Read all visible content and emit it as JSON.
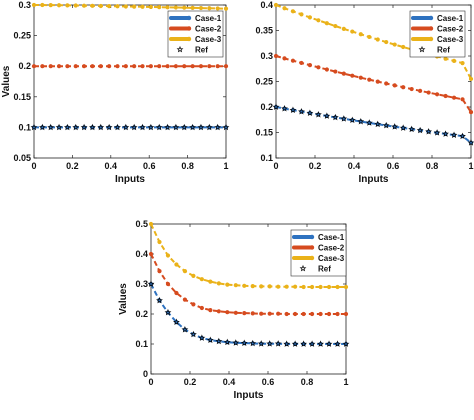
{
  "chart_data": [
    {
      "type": "line",
      "xlabel": "Inputs",
      "ylabel": "Values",
      "xlim": [
        0,
        1
      ],
      "ylim": [
        0.05,
        0.3
      ],
      "xticks": [
        "0",
        "0.2",
        "0.4",
        "0.6",
        "0.8",
        "1"
      ],
      "yticks": [
        "0.05",
        "0.1",
        "0.15",
        "0.2",
        "0.25",
        "0.3"
      ],
      "legend": "top-right",
      "x": [
        0,
        0.0435,
        0.087,
        0.1304,
        0.1739,
        0.2174,
        0.2609,
        0.3043,
        0.3478,
        0.3913,
        0.4348,
        0.4783,
        0.5217,
        0.5652,
        0.6087,
        0.6522,
        0.6957,
        0.7391,
        0.7826,
        0.8261,
        0.8696,
        0.913,
        0.9565,
        1
      ],
      "series": [
        {
          "name": "Case-1",
          "color": "#2e72c0",
          "values": [
            0.1,
            0.1,
            0.1,
            0.1,
            0.1,
            0.1,
            0.1,
            0.1,
            0.1,
            0.1,
            0.1,
            0.1,
            0.1,
            0.1,
            0.1,
            0.1,
            0.1,
            0.1,
            0.1,
            0.1,
            0.1,
            0.1,
            0.1,
            0.1
          ]
        },
        {
          "name": "Case-2",
          "color": "#d64b1f",
          "values": [
            0.2,
            0.2,
            0.2,
            0.2,
            0.2,
            0.2,
            0.2,
            0.2,
            0.2,
            0.2,
            0.2,
            0.2,
            0.2,
            0.2,
            0.2,
            0.2,
            0.2,
            0.2,
            0.2,
            0.2,
            0.2,
            0.2,
            0.2,
            0.2
          ]
        },
        {
          "name": "Case-3",
          "color": "#eab219",
          "values": [
            0.3,
            0.3,
            0.2998,
            0.2996,
            0.2994,
            0.2992,
            0.2989,
            0.2987,
            0.2984,
            0.2982,
            0.2979,
            0.2976,
            0.2974,
            0.2971,
            0.2968,
            0.2965,
            0.2962,
            0.2959,
            0.2956,
            0.2953,
            0.295,
            0.2947,
            0.2944,
            0.294
          ]
        },
        {
          "name": "Ref",
          "color": "#000000",
          "marker": "star",
          "values": [
            0.1,
            0.1,
            0.1,
            0.1,
            0.1,
            0.1,
            0.1,
            0.1,
            0.1,
            0.1,
            0.1,
            0.1,
            0.1,
            0.1,
            0.1,
            0.1,
            0.1,
            0.1,
            0.1,
            0.1,
            0.1,
            0.1,
            0.1,
            0.1
          ]
        }
      ]
    },
    {
      "type": "line",
      "xlabel": "Inputs",
      "ylabel": "",
      "xlim": [
        0,
        1
      ],
      "ylim": [
        0.1,
        0.4
      ],
      "xticks": [
        "0",
        "0.2",
        "0.4",
        "0.6",
        "0.8",
        "1"
      ],
      "yticks": [
        "0.1",
        "0.15",
        "0.2",
        "0.25",
        "0.3",
        "0.35",
        "0.4"
      ],
      "legend": "top-right",
      "x": [
        0,
        0.0435,
        0.087,
        0.1304,
        0.1739,
        0.2174,
        0.2609,
        0.3043,
        0.3478,
        0.3913,
        0.4348,
        0.4783,
        0.5217,
        0.5652,
        0.6087,
        0.6522,
        0.6957,
        0.7391,
        0.7826,
        0.8261,
        0.8696,
        0.913,
        0.9565,
        1
      ],
      "series": [
        {
          "name": "Case-1",
          "color": "#2e72c0",
          "values": [
            0.2,
            0.1969,
            0.1939,
            0.191,
            0.1881,
            0.1852,
            0.1824,
            0.1796,
            0.1769,
            0.1742,
            0.1715,
            0.1689,
            0.1663,
            0.1638,
            0.1613,
            0.1589,
            0.1565,
            0.1541,
            0.1518,
            0.1495,
            0.1472,
            0.145,
            0.1428,
            0.13
          ]
        },
        {
          "name": "Case-2",
          "color": "#d64b1f",
          "values": [
            0.3,
            0.2953,
            0.2908,
            0.2864,
            0.2821,
            0.2778,
            0.2736,
            0.2695,
            0.2654,
            0.2614,
            0.2575,
            0.2536,
            0.2498,
            0.2461,
            0.2424,
            0.2388,
            0.2352,
            0.2317,
            0.2283,
            0.2249,
            0.2216,
            0.2183,
            0.2151,
            0.19
          ]
        },
        {
          "name": "Case-3",
          "color": "#eab219",
          "values": [
            0.4,
            0.3937,
            0.3876,
            0.3816,
            0.3757,
            0.37,
            0.3643,
            0.3587,
            0.3532,
            0.3479,
            0.3426,
            0.3374,
            0.3323,
            0.3273,
            0.3224,
            0.3176,
            0.3128,
            0.3082,
            0.3036,
            0.2991,
            0.2947,
            0.2904,
            0.2861,
            0.255
          ]
        },
        {
          "name": "Ref",
          "color": "#000000",
          "marker": "star",
          "values": [
            0.2,
            0.1969,
            0.1939,
            0.191,
            0.1881,
            0.1852,
            0.1824,
            0.1796,
            0.1769,
            0.1742,
            0.1715,
            0.1689,
            0.1663,
            0.1638,
            0.1613,
            0.1589,
            0.1565,
            0.1541,
            0.1518,
            0.1495,
            0.1472,
            0.145,
            0.1428,
            0.13
          ]
        }
      ]
    },
    {
      "type": "line",
      "xlabel": "Inputs",
      "ylabel": "Values",
      "xlim": [
        0,
        1
      ],
      "ylim": [
        0,
        0.5
      ],
      "xticks": [
        "0",
        "0.2",
        "0.4",
        "0.6",
        "0.8",
        "1"
      ],
      "yticks": [
        "0",
        "0.1",
        "0.2",
        "0.3",
        "0.4",
        "0.5"
      ],
      "legend": "top-right",
      "x": [
        0,
        0.0435,
        0.087,
        0.1304,
        0.1739,
        0.2174,
        0.2609,
        0.3043,
        0.3478,
        0.3913,
        0.4348,
        0.4783,
        0.5217,
        0.5652,
        0.6087,
        0.6522,
        0.6957,
        0.7391,
        0.7826,
        0.8261,
        0.8696,
        0.913,
        0.9565,
        1
      ],
      "series": [
        {
          "name": "Case-1",
          "color": "#2e72c0",
          "values": [
            0.3,
            0.245,
            0.205,
            0.173,
            0.148,
            0.132,
            0.12,
            0.113,
            0.109,
            0.106,
            0.104,
            0.103,
            0.102,
            0.101,
            0.101,
            0.101,
            0.1,
            0.1,
            0.1,
            0.1,
            0.1,
            0.1,
            0.1,
            0.1
          ]
        },
        {
          "name": "Case-2",
          "color": "#d64b1f",
          "values": [
            0.4,
            0.343,
            0.3,
            0.27,
            0.248,
            0.232,
            0.22,
            0.213,
            0.209,
            0.206,
            0.204,
            0.203,
            0.202,
            0.201,
            0.201,
            0.201,
            0.2,
            0.2,
            0.2,
            0.2,
            0.2,
            0.2,
            0.2,
            0.2
          ]
        },
        {
          "name": "Case-3",
          "color": "#eab219",
          "values": [
            0.5,
            0.44,
            0.395,
            0.365,
            0.343,
            0.327,
            0.316,
            0.308,
            0.302,
            0.298,
            0.296,
            0.294,
            0.293,
            0.292,
            0.292,
            0.291,
            0.291,
            0.291,
            0.29,
            0.29,
            0.29,
            0.29,
            0.29,
            0.29
          ]
        },
        {
          "name": "Ref",
          "color": "#000000",
          "marker": "star",
          "values": [
            0.3,
            0.245,
            0.205,
            0.173,
            0.148,
            0.132,
            0.12,
            0.113,
            0.109,
            0.106,
            0.104,
            0.103,
            0.102,
            0.101,
            0.101,
            0.101,
            0.1,
            0.1,
            0.1,
            0.1,
            0.1,
            0.1,
            0.1,
            0.1
          ]
        }
      ]
    }
  ]
}
